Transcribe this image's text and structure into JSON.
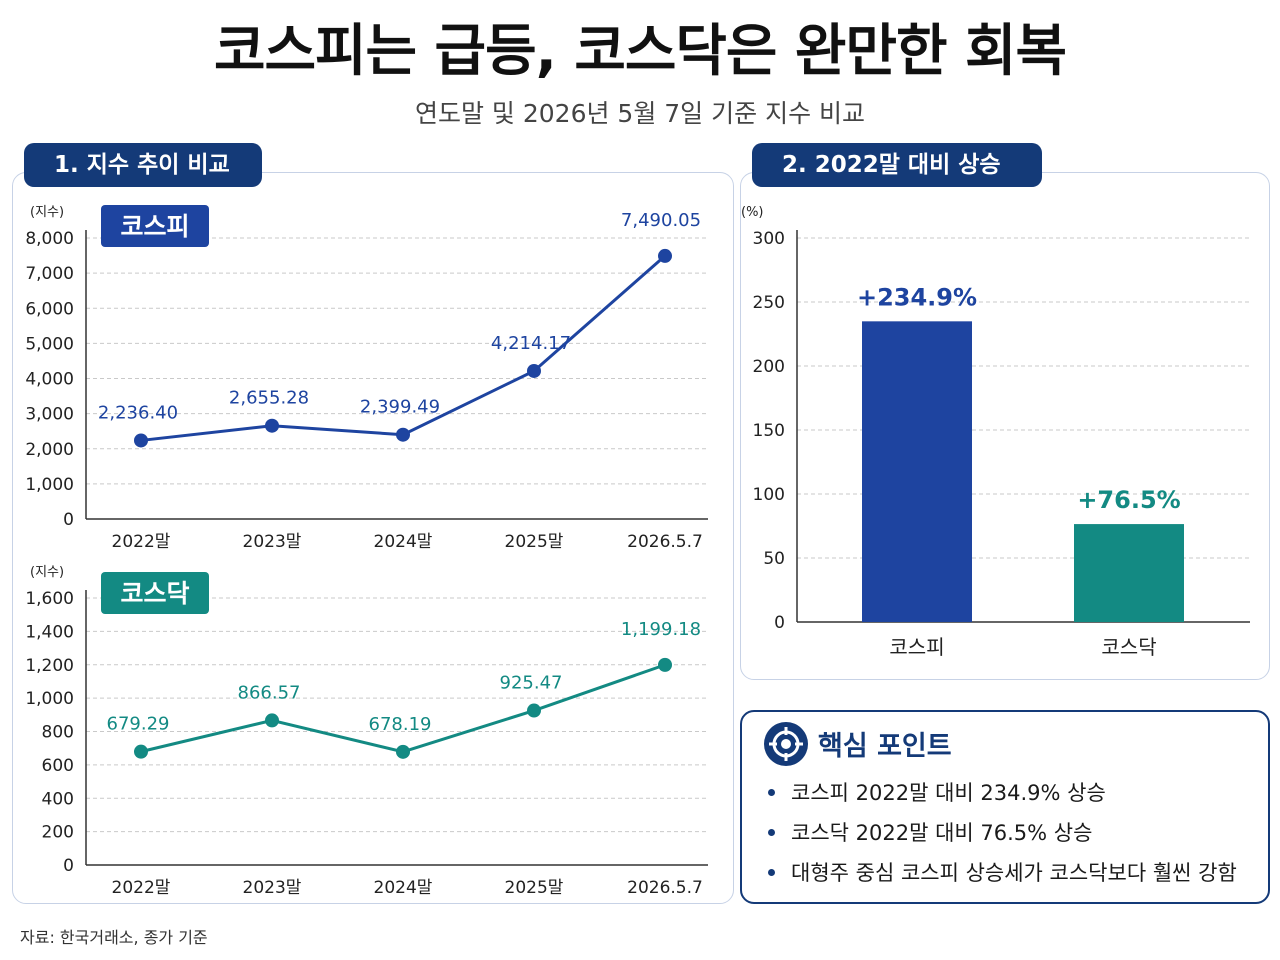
{
  "title": "코스피는 급등, 코스닥은 완만한 회복",
  "subtitle": "연도말 및 2026년 5월 7일 기준 지수 비교",
  "section1_label": "1. 지수 추이 비교",
  "section2_label": "2. 2022말 대비 상승률",
  "colors": {
    "navy": "#143a78",
    "kospi": "#1e44a0",
    "kosdaq": "#138a83"
  },
  "chart_data": [
    {
      "type": "line",
      "badge": "코스피",
      "ylabel": "(지수)",
      "categories": [
        "2022말",
        "2023말",
        "2024말",
        "2025말",
        "2026.5.7"
      ],
      "ylim": [
        0,
        8000
      ],
      "yticks": [
        "0",
        "1,000",
        "2,000",
        "3,000",
        "4,000",
        "5,000",
        "6,000",
        "7,000",
        "8,000"
      ],
      "series": [
        {
          "values": [
            2236.4,
            2655.28,
            2399.49,
            4214.17,
            7490.05
          ],
          "labels": [
            "2,236.40",
            "2,655.28",
            "2,399.49",
            "4,214.17",
            "7,490.05"
          ]
        }
      ],
      "grid": true
    },
    {
      "type": "line",
      "badge": "코스닥",
      "ylabel": "(지수)",
      "categories": [
        "2022말",
        "2023말",
        "2024말",
        "2025말",
        "2026.5.7"
      ],
      "ylim": [
        0,
        1600
      ],
      "yticks": [
        "0",
        "200",
        "400",
        "600",
        "800",
        "1,000",
        "1,200",
        "1,400",
        "1,600"
      ],
      "series": [
        {
          "values": [
            679.29,
            866.57,
            678.19,
            925.47,
            1199.18
          ],
          "labels": [
            "679.29",
            "866.57",
            "678.19",
            "925.47",
            "1,199.18"
          ]
        }
      ],
      "grid": true
    },
    {
      "type": "bar",
      "ylabel": "(%)",
      "categories": [
        "코스피",
        "코스닥"
      ],
      "values": [
        234.9,
        76.5
      ],
      "labels": [
        "+234.9%",
        "+76.5%"
      ],
      "ylim": [
        0,
        300
      ],
      "yticks": [
        "0",
        "50",
        "100",
        "150",
        "200",
        "250",
        "300"
      ],
      "grid": true
    }
  ],
  "key_points": {
    "title": "핵심 포인트",
    "items": [
      "코스피 2022말 대비 234.9% 상승",
      "코스닥 2022말 대비 76.5% 상승",
      "대형주 중심 코스피 상승세가 코스닥보다 훨씬 강함"
    ]
  },
  "source": "자료: 한국거래소, 종가 기준"
}
